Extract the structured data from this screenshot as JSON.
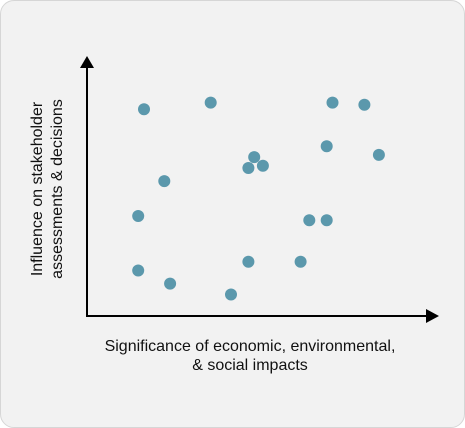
{
  "chart_data": {
    "type": "scatter",
    "title": "",
    "xlabel_lines": [
      "Significance of economic, environmental,",
      "& social impacts"
    ],
    "ylabel_lines": [
      "Influence on stakeholder",
      "assessments & decisions"
    ],
    "xlim": [
      0,
      100
    ],
    "ylim": [
      0,
      100
    ],
    "grid": false,
    "legend": "none",
    "point_color": "#5b98ac",
    "axis_color": "#000000",
    "background_color": "#f2f2f2",
    "points": [
      {
        "x": 10,
        "y": 88
      },
      {
        "x": 33,
        "y": 91
      },
      {
        "x": 75,
        "y": 91
      },
      {
        "x": 86,
        "y": 90
      },
      {
        "x": 73,
        "y": 71
      },
      {
        "x": 91,
        "y": 67
      },
      {
        "x": 48,
        "y": 66
      },
      {
        "x": 46,
        "y": 61
      },
      {
        "x": 51,
        "y": 62
      },
      {
        "x": 17,
        "y": 55
      },
      {
        "x": 8,
        "y": 39
      },
      {
        "x": 67,
        "y": 37
      },
      {
        "x": 73,
        "y": 37
      },
      {
        "x": 46,
        "y": 18
      },
      {
        "x": 64,
        "y": 18
      },
      {
        "x": 8,
        "y": 14
      },
      {
        "x": 19,
        "y": 8
      },
      {
        "x": 40,
        "y": 3
      }
    ]
  }
}
